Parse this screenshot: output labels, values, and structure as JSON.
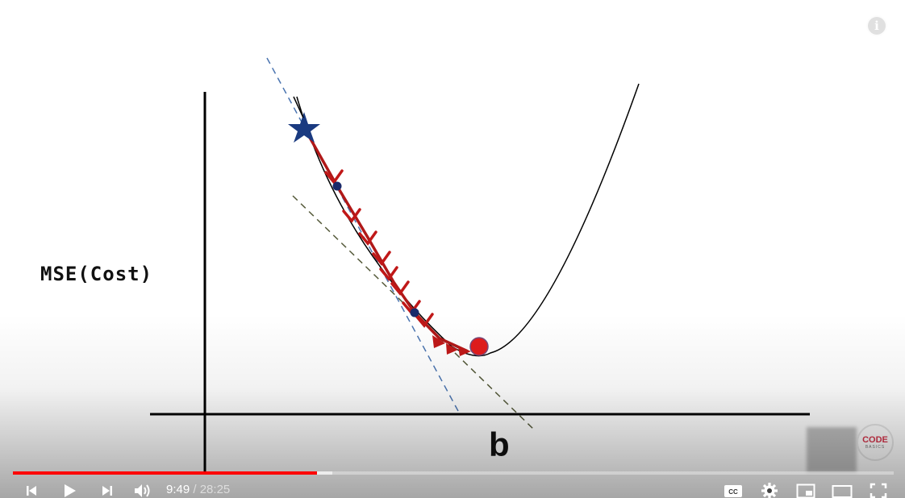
{
  "video": {
    "ylabel": "MSE(Cost)",
    "xlabel": "b",
    "brand": {
      "line1": "CODE",
      "line2": "BASICS"
    }
  },
  "player": {
    "info_icon": "info-icon",
    "current_time": "9:49",
    "separator": " / ",
    "duration": "28:25",
    "played_fraction": 0.345,
    "loaded_fraction": 0.363,
    "accent_color": "#ff0000",
    "controls": [
      {
        "name": "previous-button",
        "icon": "skip-previous-icon"
      },
      {
        "name": "play-button",
        "icon": "play-icon"
      },
      {
        "name": "next-button",
        "icon": "skip-next-icon"
      },
      {
        "name": "volume-button",
        "icon": "volume-icon"
      },
      {
        "name": "captions-button",
        "icon": "cc-icon"
      },
      {
        "name": "settings-button",
        "icon": "gear-icon"
      },
      {
        "name": "miniplayer-button",
        "icon": "miniplayer-icon"
      },
      {
        "name": "theater-button",
        "icon": "theater-mode-icon"
      },
      {
        "name": "fullscreen-button",
        "icon": "fullscreen-icon"
      }
    ]
  }
}
